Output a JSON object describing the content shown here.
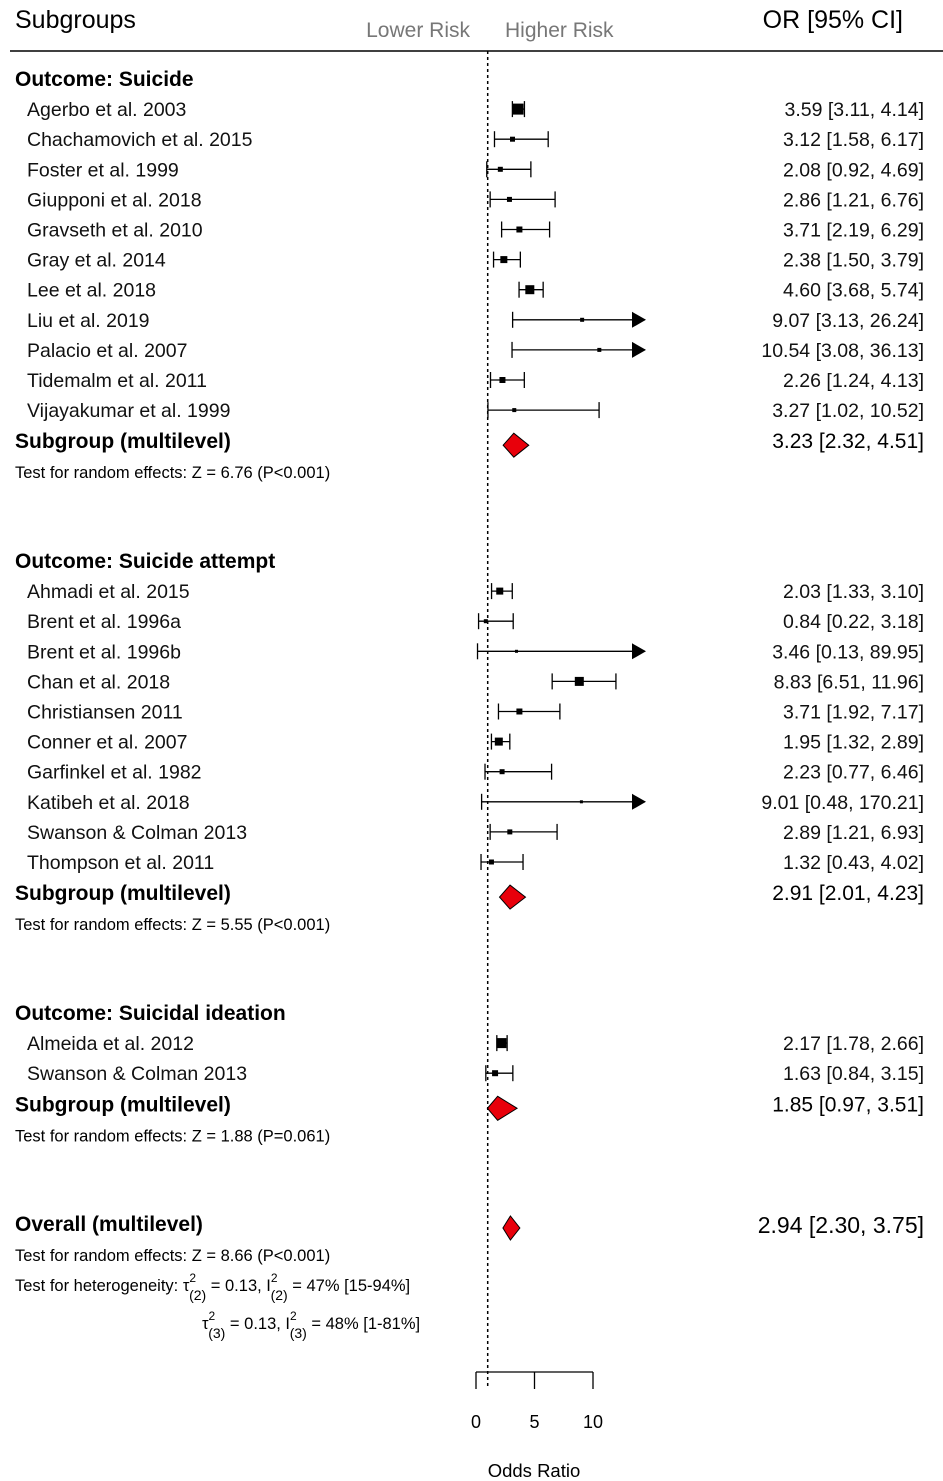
{
  "header": {
    "subgroups": "Subgroups",
    "lower_risk": "Lower Risk",
    "higher_risk": "Higher Risk",
    "or_ci": "OR [95% CI]"
  },
  "chart_data": {
    "type": "forest",
    "xlabel": "Odds Ratio",
    "xlim": [
      0,
      10
    ],
    "xticks": [
      0,
      5,
      10
    ],
    "reference_line": 1,
    "colors": {
      "summary_fill": "#e8000b",
      "point": "#000000",
      "reference_line": "#000000"
    },
    "groups": [
      {
        "title": "Outcome: Suicide",
        "studies": [
          {
            "name": "Agerbo et al. 2003",
            "or": 3.59,
            "lo": 3.11,
            "hi": 4.14,
            "ci_text": "3.59 [3.11,  4.14]",
            "w": 11
          },
          {
            "name": "Chachamovich et al. 2015",
            "or": 3.12,
            "lo": 1.58,
            "hi": 6.17,
            "ci_text": "3.12 [1.58,  6.17]",
            "w": 5
          },
          {
            "name": "Foster et al. 1999",
            "or": 2.08,
            "lo": 0.92,
            "hi": 4.69,
            "ci_text": "2.08 [0.92,  4.69]",
            "w": 5
          },
          {
            "name": "Giupponi et al. 2018",
            "or": 2.86,
            "lo": 1.21,
            "hi": 6.76,
            "ci_text": "2.86 [1.21,  6.76]",
            "w": 5
          },
          {
            "name": "Gravseth et al. 2010",
            "or": 3.71,
            "lo": 2.19,
            "hi": 6.29,
            "ci_text": "3.71 [2.19,  6.29]",
            "w": 6
          },
          {
            "name": "Gray et al. 2014",
            "or": 2.38,
            "lo": 1.5,
            "hi": 3.79,
            "ci_text": "2.38 [1.50,  3.79]",
            "w": 7
          },
          {
            "name": "Lee et al. 2018",
            "or": 4.6,
            "lo": 3.68,
            "hi": 5.74,
            "ci_text": "4.60 [3.68,  5.74]",
            "w": 9
          },
          {
            "name": "Liu et al. 2019",
            "or": 9.07,
            "lo": 3.13,
            "hi": 26.24,
            "ci_text": "9.07 [3.13,  26.24]",
            "w": 4
          },
          {
            "name": "Palacio et al. 2007",
            "or": 10.54,
            "lo": 3.08,
            "hi": 36.13,
            "ci_text": "10.54 [3.08,  36.13]",
            "w": 4
          },
          {
            "name": "Tidemalm et al. 2011",
            "or": 2.26,
            "lo": 1.24,
            "hi": 4.13,
            "ci_text": "2.26 [1.24,  4.13]",
            "w": 6
          },
          {
            "name": "Vijayakumar et al. 1999",
            "or": 3.27,
            "lo": 1.02,
            "hi": 10.52,
            "ci_text": "3.27 [1.02,  10.52]",
            "w": 4
          }
        ],
        "summary": {
          "label": "Subgroup (multilevel)",
          "or": 3.23,
          "lo": 2.32,
          "hi": 4.51,
          "ci_text": "3.23 [2.32, 4.51]"
        },
        "test": "Test for random effects: Z = 6.76 (P<0.001)"
      },
      {
        "title": "Outcome: Suicide attempt",
        "studies": [
          {
            "name": "Ahmadi et al. 2015",
            "or": 2.03,
            "lo": 1.33,
            "hi": 3.1,
            "ci_text": "2.03 [1.33,  3.10]",
            "w": 7
          },
          {
            "name": "Brent et al. 1996a",
            "or": 0.84,
            "lo": 0.22,
            "hi": 3.18,
            "ci_text": "0.84 [0.22,  3.18]",
            "w": 4
          },
          {
            "name": "Brent et al. 1996b",
            "or": 3.46,
            "lo": 0.13,
            "hi": 89.95,
            "ci_text": "3.46 [0.13,  89.95]",
            "w": 3
          },
          {
            "name": "Chan et al. 2018",
            "or": 8.83,
            "lo": 6.51,
            "hi": 11.96,
            "ci_text": "8.83 [6.51,  11.96]",
            "w": 9
          },
          {
            "name": "Christiansen 2011",
            "or": 3.71,
            "lo": 1.92,
            "hi": 7.17,
            "ci_text": "3.71 [1.92,  7.17]",
            "w": 6
          },
          {
            "name": "Conner et al. 2007",
            "or": 1.95,
            "lo": 1.32,
            "hi": 2.89,
            "ci_text": "1.95 [1.32,  2.89]",
            "w": 8
          },
          {
            "name": "Garfinkel et al. 1982",
            "or": 2.23,
            "lo": 0.77,
            "hi": 6.46,
            "ci_text": "2.23 [0.77,  6.46]",
            "w": 5
          },
          {
            "name": "Katibeh et al. 2018",
            "or": 9.01,
            "lo": 0.48,
            "hi": 170.21,
            "ci_text": "9.01 [0.48, 170.21]",
            "w": 3
          },
          {
            "name": "Swanson & Colman 2013",
            "or": 2.89,
            "lo": 1.21,
            "hi": 6.93,
            "ci_text": "2.89 [1.21,  6.93]",
            "w": 5
          },
          {
            "name": "Thompson et al. 2011",
            "or": 1.32,
            "lo": 0.43,
            "hi": 4.02,
            "ci_text": "1.32 [0.43,  4.02]",
            "w": 5
          }
        ],
        "summary": {
          "label": "Subgroup (multilevel)",
          "or": 2.91,
          "lo": 2.01,
          "hi": 4.23,
          "ci_text": "2.91 [2.01, 4.23]"
        },
        "test": "Test for random effects: Z = 5.55 (P<0.001)"
      },
      {
        "title": "Outcome: Suicidal ideation",
        "studies": [
          {
            "name": "Almeida et al. 2012",
            "or": 2.17,
            "lo": 1.78,
            "hi": 2.66,
            "ci_text": "2.17 [1.78,  2.66]",
            "w": 10
          },
          {
            "name": "Swanson & Colman 2013",
            "or": 1.63,
            "lo": 0.84,
            "hi": 3.15,
            "ci_text": "1.63 [0.84,  3.15]",
            "w": 6
          }
        ],
        "summary": {
          "label": "Subgroup (multilevel)",
          "or": 1.85,
          "lo": 0.97,
          "hi": 3.51,
          "ci_text": "1.85 [0.97, 3.51]"
        },
        "test": "Test for random effects: Z = 1.88 (P=0.061)"
      }
    ],
    "overall": {
      "label": "Overall (multilevel)",
      "or": 2.94,
      "lo": 2.3,
      "hi": 3.75,
      "ci_text": "2.94 [2.30, 3.75]",
      "test": "Test for random effects: Z = 8.66 (P<0.001)",
      "heterogeneity_label": "Test for heterogeneity:",
      "het1_sym": "τ",
      "het1_sup": "2",
      "het1_sub": "(2)",
      "het1_mid": " = 0.13, I",
      "het1_sup2": "2",
      "het1_sub2": "(2)",
      "het1_end": " = 47% [15-94%]",
      "het2_sym": "τ",
      "het2_sup": "2",
      "het2_sub": "(3)",
      "het2_mid": " = 0.13, I",
      "het2_sup2": "2",
      "het2_sub2": "(3)",
      "het2_end": " = 48% [1-81%]"
    }
  }
}
